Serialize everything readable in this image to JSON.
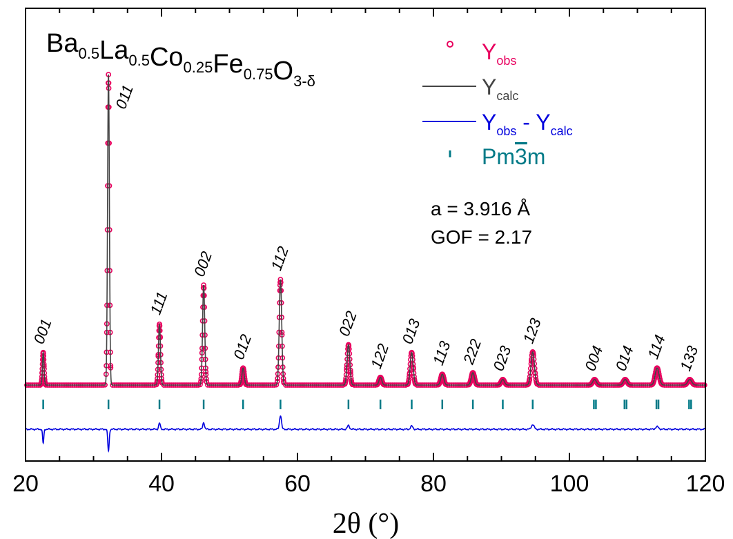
{
  "chart_data": {
    "type": "line",
    "title": {
      "parts": [
        {
          "text": "Ba",
          "sub": false
        },
        {
          "text": "0.5",
          "sub": true
        },
        {
          "text": "La",
          "sub": false
        },
        {
          "text": "0.5",
          "sub": true
        },
        {
          "text": "Co",
          "sub": false
        },
        {
          "text": "0.25",
          "sub": true
        },
        {
          "text": "Fe",
          "sub": false
        },
        {
          "text": "0.75",
          "sub": true
        },
        {
          "text": "O",
          "sub": false
        },
        {
          "text": "3-δ",
          "sub": true
        }
      ]
    },
    "xlabel": "2θ (°)",
    "ylabel": "",
    "xlim": [
      20,
      120
    ],
    "xticks": [
      "20",
      "40",
      "60",
      "80",
      "100",
      "120"
    ],
    "annotations": {
      "lattice": "a = 3.916 Å",
      "gof": "GOF = 2.17"
    },
    "legend": {
      "placement": "top-right",
      "items": [
        {
          "key": "obs",
          "main": "Y",
          "sub": "obs",
          "color": "#e8005e",
          "marker": "circle"
        },
        {
          "key": "calc",
          "main": "Y",
          "sub": "calc",
          "color": "#444444",
          "marker": "line"
        },
        {
          "key": "diff",
          "main": "Y",
          "sub": "obs",
          "mid": " - ",
          "main2": "Y",
          "sub2": "calc",
          "color": "#0000dd",
          "marker": "line"
        },
        {
          "key": "ticks",
          "main": "Pm",
          "bar": "3",
          "rest": "m",
          "color": "#007a87",
          "marker": "tick"
        }
      ]
    },
    "colors": {
      "obs": "#e8005e",
      "calc": "#444444",
      "diff": "#0000dd",
      "bragg": "#007a87"
    },
    "peaks": [
      {
        "hkl": "001",
        "x": 22.6,
        "rel": 0.105
      },
      {
        "hkl": "011",
        "x": 32.2,
        "rel": 1.0
      },
      {
        "hkl": "111",
        "x": 39.7,
        "rel": 0.196
      },
      {
        "hkl": "002",
        "x": 46.2,
        "rel": 0.322
      },
      {
        "hkl": "012",
        "x": 52.0,
        "rel": 0.055
      },
      {
        "hkl": "112",
        "x": 57.5,
        "rel": 0.34
      },
      {
        "hkl": "022",
        "x": 67.5,
        "rel": 0.13
      },
      {
        "hkl": "122",
        "x": 72.2,
        "rel": 0.025
      },
      {
        "hkl": "013",
        "x": 76.8,
        "rel": 0.105
      },
      {
        "hkl": "113",
        "x": 81.3,
        "rel": 0.035
      },
      {
        "hkl": "222",
        "x": 85.8,
        "rel": 0.04
      },
      {
        "hkl": "023",
        "x": 90.2,
        "rel": 0.018
      },
      {
        "hkl": "123",
        "x": 94.6,
        "rel": 0.107
      },
      {
        "hkl": "004",
        "x": 103.7,
        "rel": 0.018
      },
      {
        "hkl": "014",
        "x": 108.2,
        "rel": 0.018
      },
      {
        "hkl": "114",
        "x": 112.9,
        "rel": 0.055
      },
      {
        "hkl": "133",
        "x": 117.7,
        "rel": 0.018
      }
    ],
    "bragg_ticks": [
      22.6,
      32.2,
      39.7,
      46.2,
      52.0,
      57.5,
      67.5,
      72.2,
      76.8,
      81.3,
      85.8,
      90.2,
      94.6,
      103.6,
      103.9,
      108.1,
      108.4,
      112.8,
      113.1,
      117.6,
      117.9
    ],
    "difference_features": [
      {
        "x": 22.6,
        "amp": -0.045
      },
      {
        "x": 32.2,
        "amp": -0.07
      },
      {
        "x": 39.7,
        "amp": 0.02
      },
      {
        "x": 46.2,
        "amp": 0.022
      },
      {
        "x": 57.5,
        "amp": 0.045
      },
      {
        "x": 67.5,
        "amp": 0.012
      },
      {
        "x": 76.8,
        "amp": 0.01
      },
      {
        "x": 94.6,
        "amp": 0.015
      },
      {
        "x": 112.9,
        "amp": 0.008
      }
    ]
  }
}
